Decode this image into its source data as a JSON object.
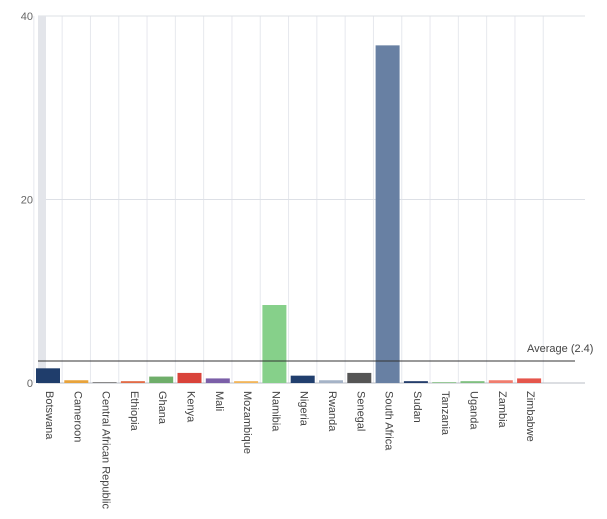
{
  "chart_data": {
    "type": "bar",
    "title": "",
    "xlabel": "",
    "ylabel": "",
    "ylim": [
      0,
      40
    ],
    "y_ticks": [
      "0",
      "20",
      "40"
    ],
    "y_tick_values": [
      0,
      20,
      40
    ],
    "grid": true,
    "legend": "none",
    "categories": [
      "Botswana",
      "Cameroon",
      "Central African Republic",
      "Ethiopia",
      "Ghana",
      "Kenya",
      "Mali",
      "Mozambique",
      "Namibia",
      "Nigeria",
      "Rwanda",
      "Senegal",
      "South Africa",
      "Sudan",
      "Tanzania",
      "Uganda",
      "Zambia",
      "Zimbabwe"
    ],
    "values": [
      1.6,
      0.3,
      0.1,
      0.2,
      0.7,
      1.1,
      0.5,
      0.2,
      8.5,
      0.8,
      0.3,
      1.1,
      36.8,
      0.2,
      0.1,
      0.2,
      0.3,
      0.5
    ],
    "colors": [
      "#1f3d6b",
      "#e8a33b",
      "#8a8a8a",
      "#e26b46",
      "#6fae6a",
      "#d9433a",
      "#7b5fa8",
      "#f2b55a",
      "#86d08a",
      "#213f6e",
      "#a5b3c7",
      "#555555",
      "#6880a3",
      "#243d6b",
      "#98c998",
      "#7fbf7f",
      "#f07d6e",
      "#e5564c"
    ],
    "average": {
      "label": "Average (2.4)",
      "value": 2.4
    }
  }
}
